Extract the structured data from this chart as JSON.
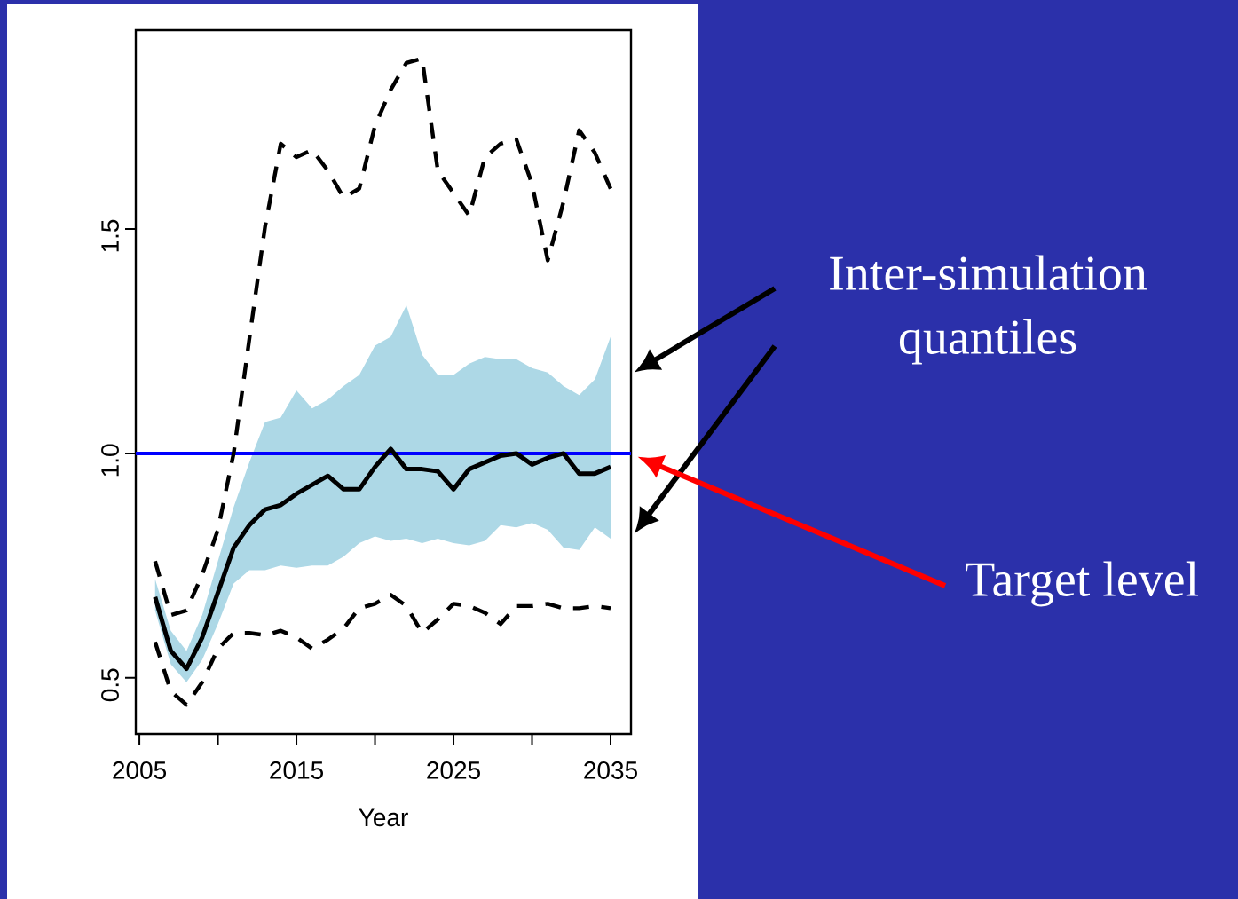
{
  "chart_data": {
    "type": "line",
    "xlabel": "Year",
    "x": [
      2006,
      2007,
      2008,
      2009,
      2010,
      2011,
      2012,
      2013,
      2014,
      2015,
      2016,
      2017,
      2018,
      2019,
      2020,
      2021,
      2022,
      2023,
      2024,
      2025,
      2026,
      2027,
      2028,
      2029,
      2030,
      2031,
      2032,
      2033,
      2034,
      2035
    ],
    "xlim": [
      2004.77,
      2036.3
    ],
    "ylim": [
      0.375,
      1.943
    ],
    "xticks": [
      2005,
      {
        "value": 2010,
        "label": null
      },
      2015,
      {
        "value": 2020,
        "label": null
      },
      2025,
      {
        "value": 2030,
        "label": null
      },
      2035
    ],
    "yticks": [
      {
        "value": 0.5,
        "label": "0.5"
      },
      {
        "value": 1.0,
        "label": "1.0"
      },
      {
        "value": 1.5,
        "label": "1.5"
      }
    ],
    "marker": "none",
    "series": [
      {
        "color": "#000000",
        "line_style": "solid",
        "values": [
          0.68,
          0.56,
          0.52,
          0.59,
          0.69,
          0.79,
          0.84,
          0.875,
          0.885,
          0.91,
          0.93,
          0.95,
          0.92,
          0.92,
          0.97,
          1.01,
          0.965,
          0.965,
          0.96,
          0.92,
          0.965,
          0.98,
          0.995,
          1.0,
          0.975,
          0.99,
          1.0,
          0.955,
          0.955,
          0.97
        ],
        "lower": [
          0.65,
          0.53,
          0.49,
          0.54,
          0.62,
          0.71,
          0.74,
          0.74,
          0.75,
          0.745,
          0.75,
          0.75,
          0.77,
          0.8,
          0.815,
          0.805,
          0.81,
          0.8,
          0.81,
          0.8,
          0.795,
          0.805,
          0.84,
          0.835,
          0.845,
          0.83,
          0.79,
          0.785,
          0.835,
          0.81
        ],
        "upper": [
          0.72,
          0.605,
          0.56,
          0.64,
          0.76,
          0.88,
          0.98,
          1.07,
          1.08,
          1.14,
          1.1,
          1.12,
          1.15,
          1.175,
          1.24,
          1.26,
          1.33,
          1.22,
          1.175,
          1.175,
          1.2,
          1.215,
          1.21,
          1.21,
          1.19,
          1.18,
          1.15,
          1.13,
          1.165,
          1.26
        ]
      },
      {
        "color": "#000000",
        "line_style": "dashed",
        "values": [
          0.76,
          0.64,
          0.65,
          0.73,
          0.83,
          1.0,
          1.255,
          1.505,
          1.69,
          1.66,
          1.676,
          1.63,
          1.57,
          1.59,
          1.73,
          1.81,
          1.87,
          1.88,
          1.63,
          1.58,
          1.53,
          1.66,
          1.69,
          1.7,
          1.6,
          1.43,
          1.56,
          1.72,
          1.67,
          1.59
        ]
      },
      {
        "color": "#000000",
        "line_style": "dashed",
        "values": [
          0.58,
          0.47,
          0.44,
          0.49,
          0.565,
          0.6,
          0.6,
          0.595,
          0.605,
          0.59,
          0.565,
          0.585,
          0.61,
          0.655,
          0.665,
          0.685,
          0.66,
          0.6,
          0.63,
          0.665,
          0.66,
          0.645,
          0.62,
          0.66,
          0.66,
          0.665,
          0.655,
          0.655,
          0.66,
          0.655
        ]
      }
    ],
    "ref_lines": [
      {
        "axis": "y",
        "value": 1.0,
        "color": "#0000ff"
      }
    ],
    "annotations": [
      "Inter-simulation quantiles",
      "Target level"
    ]
  }
}
